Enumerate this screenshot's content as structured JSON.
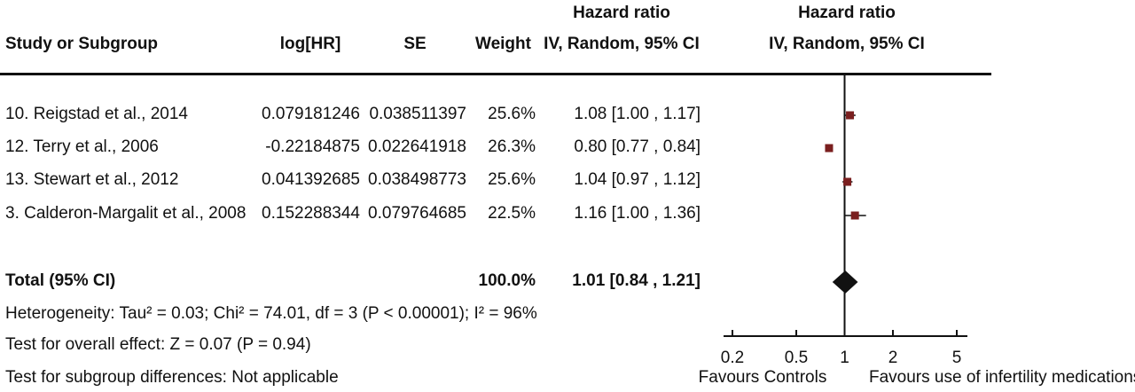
{
  "header": {
    "study": "Study or Subgroup",
    "loghr": "log[HR]",
    "se": "SE",
    "weight": "Weight",
    "hr_title": "Hazard ratio",
    "hr_sub": "IV, Random, 95% CI",
    "plot_title": "Hazard ratio",
    "plot_sub": "IV, Random, 95% CI"
  },
  "studies": [
    {
      "name": "10. Reigstad et al., 2014",
      "loghr": "0.079181246",
      "se": "0.038511397",
      "weight": "25.6%",
      "ci": "1.08 [1.00 , 1.17]"
    },
    {
      "name": "12. Terry et al., 2006",
      "loghr": "-0.22184875",
      "se": "0.022641918",
      "weight": "26.3%",
      "ci": "0.80 [0.77 , 0.84]"
    },
    {
      "name": "13. Stewart et al., 2012",
      "loghr": "0.041392685",
      "se": "0.038498773",
      "weight": "25.6%",
      "ci": "1.04 [0.97 , 1.12]"
    },
    {
      "name": "3. Calderon-Margalit et al., 2008",
      "loghr": "0.152288344",
      "se": "0.079764685",
      "weight": "22.5%",
      "ci": "1.16 [1.00 , 1.36]"
    }
  ],
  "total": {
    "label": "Total (95% CI)",
    "weight": "100.0%",
    "ci": "1.01 [0.84 , 1.21]"
  },
  "footer": {
    "heterogeneity": "Heterogeneity: Tau² = 0.03; Chi² = 74.01, df = 3 (P < 0.00001); I² = 96%",
    "overall": "Test for overall effect: Z = 0.07 (P = 0.94)",
    "subgroup": "Test for subgroup differences: Not applicable"
  },
  "axis": {
    "favours_left": "Favours Controls",
    "favours_right": "Favours use of infertility medications"
  },
  "colors": {
    "marker": "#7a1f1f",
    "line": "#111111"
  },
  "chart_data": {
    "type": "forest",
    "scale": "log",
    "xlim": [
      0.2,
      5
    ],
    "ticks": [
      0.2,
      0.5,
      1,
      2,
      5
    ],
    "tick_labels": [
      "0.2",
      "0.5",
      "1",
      "2",
      "5"
    ],
    "reference": 1,
    "series": [
      {
        "label": "10. Reigstad et al., 2014",
        "hr": 1.08,
        "lo": 1.0,
        "hi": 1.17,
        "weight": 25.6
      },
      {
        "label": "12. Terry et al., 2006",
        "hr": 0.8,
        "lo": 0.77,
        "hi": 0.84,
        "weight": 26.3
      },
      {
        "label": "13. Stewart et al., 2012",
        "hr": 1.04,
        "lo": 0.97,
        "hi": 1.12,
        "weight": 25.6
      },
      {
        "label": "3. Calderon-Margalit et al., 2008",
        "hr": 1.16,
        "lo": 1.0,
        "hi": 1.36,
        "weight": 22.5
      }
    ],
    "pooled": {
      "hr": 1.01,
      "lo": 0.84,
      "hi": 1.21
    }
  }
}
